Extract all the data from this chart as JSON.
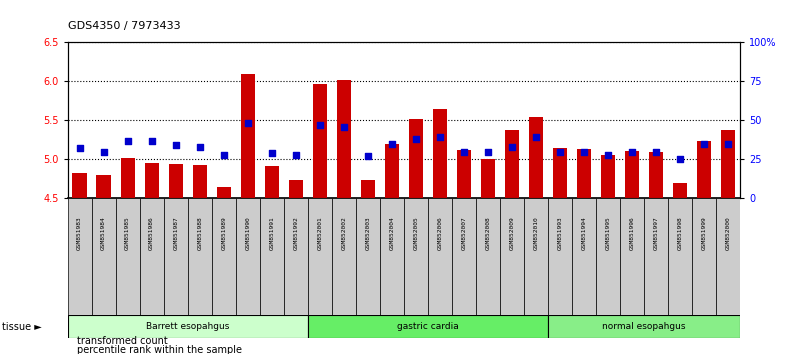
{
  "title": "GDS4350 / 7973433",
  "samples": [
    "GSM851983",
    "GSM851984",
    "GSM851985",
    "GSM851986",
    "GSM851987",
    "GSM851988",
    "GSM851989",
    "GSM851990",
    "GSM851991",
    "GSM851992",
    "GSM852001",
    "GSM852002",
    "GSM852003",
    "GSM852004",
    "GSM852005",
    "GSM852006",
    "GSM852007",
    "GSM852008",
    "GSM852009",
    "GSM852010",
    "GSM851993",
    "GSM851994",
    "GSM851995",
    "GSM851996",
    "GSM851997",
    "GSM851998",
    "GSM851999",
    "GSM852000"
  ],
  "transformed_count": [
    4.83,
    4.8,
    5.02,
    4.95,
    4.94,
    4.93,
    4.65,
    6.1,
    4.92,
    4.74,
    5.97,
    6.02,
    4.73,
    5.2,
    5.52,
    5.65,
    5.12,
    5.01,
    5.37,
    5.54,
    5.14,
    5.13,
    5.05,
    5.11,
    5.1,
    4.7,
    5.24,
    5.37
  ],
  "percentile_rank": [
    32,
    30,
    37,
    37,
    34,
    33,
    28,
    48,
    29,
    28,
    47,
    46,
    27,
    35,
    38,
    39,
    30,
    30,
    33,
    39,
    30,
    30,
    28,
    30,
    30,
    25,
    35,
    35
  ],
  "groups": [
    {
      "label": "Barrett esopahgus",
      "start": 0,
      "end": 10,
      "color": "#ccffcc"
    },
    {
      "label": "gastric cardia",
      "start": 10,
      "end": 20,
      "color": "#66ee66"
    },
    {
      "label": "normal esopahgus",
      "start": 20,
      "end": 28,
      "color": "#88ee88"
    }
  ],
  "ylim_left": [
    4.5,
    6.5
  ],
  "ylim_right": [
    0,
    100
  ],
  "yticks_left": [
    4.5,
    5.0,
    5.5,
    6.0,
    6.5
  ],
  "yticks_right": [
    0,
    25,
    50,
    75,
    100
  ],
  "ytick_labels_right": [
    "0",
    "25",
    "50",
    "75",
    "100%"
  ],
  "bar_color": "#cc0000",
  "dot_color": "#0000cc",
  "dot_size": 20,
  "bar_width": 0.6,
  "plot_bg": "#ffffff",
  "xtick_bg": "#cccccc"
}
